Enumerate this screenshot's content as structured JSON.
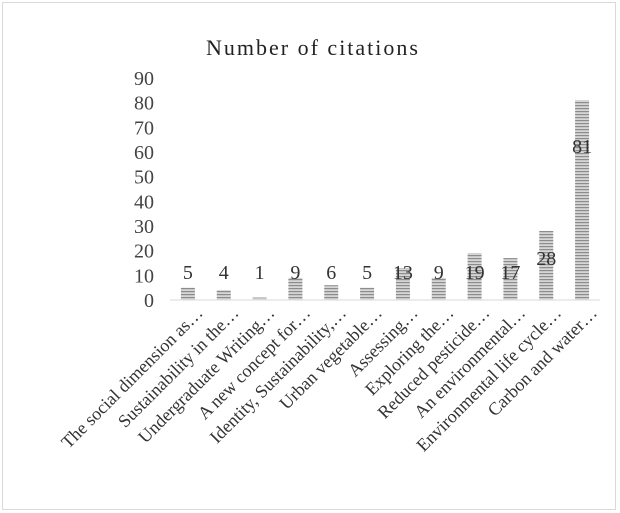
{
  "chart_data": {
    "type": "bar",
    "title": "Number of citations",
    "categories": [
      "The social dimension as…",
      "Sustainability in the…",
      "Undergraduate Writing…",
      "A new concept for…",
      "Identity, Sustainability,…",
      "Urban vegetable…",
      "Assessing…",
      "Exploring the…",
      "Reduced pesticide…",
      "An environmental…",
      "Environmental life cycle…",
      "Carbon and water…"
    ],
    "values": [
      5,
      4,
      1,
      9,
      6,
      5,
      13,
      9,
      19,
      17,
      28,
      81
    ],
    "ylim": [
      0,
      90
    ],
    "yticks": [
      0,
      10,
      20,
      30,
      40,
      50,
      60,
      70,
      80,
      90
    ],
    "grid": false,
    "legend": "none",
    "bar_fill": "#bfbfbf",
    "bar_stripe": "#8c8c8c"
  }
}
